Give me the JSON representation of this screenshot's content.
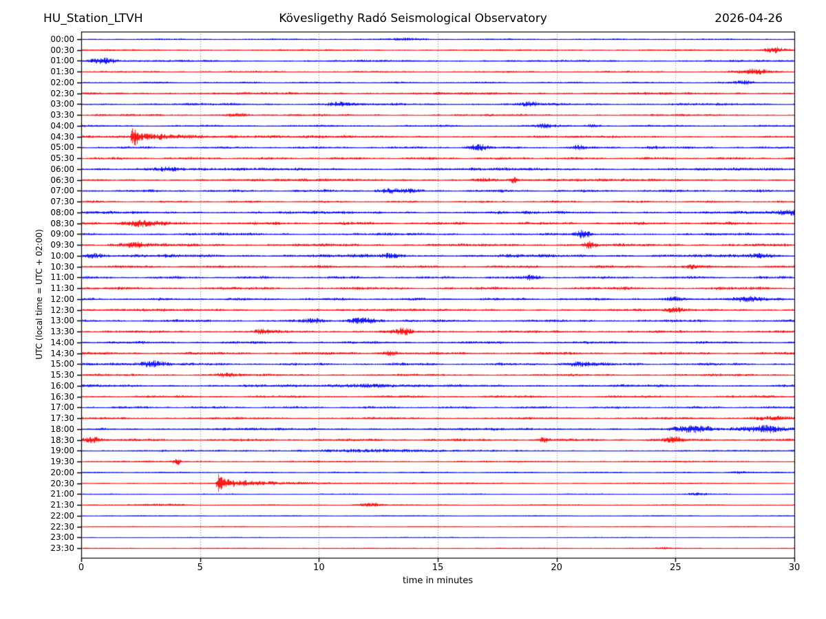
{
  "header": {
    "station": "HU_Station_LTVH",
    "observatory": "Kövesligethy Radó Seismological Observatory",
    "date": "2026-04-26"
  },
  "chart_data": {
    "type": "line",
    "subtype": "helicorder-seismogram",
    "title": "HU_Station_LTVH — Kövesligethy Radó Seismological Observatory — 2026-04-26",
    "xlabel": "time in minutes",
    "ylabel": "UTC (local time = UTC + 02:00)",
    "xlim": [
      0,
      30
    ],
    "x_ticks": [
      0,
      5,
      10,
      15,
      20,
      25,
      30
    ],
    "minutes_per_row": 30,
    "grid": "vertical-dotted-at-5-min",
    "legend": "none",
    "colors": {
      "even_rows": "#0000ff",
      "odd_rows": "#ff0000"
    },
    "rows": [
      {
        "utc": "00:00",
        "color": "blue",
        "noise": 0.9,
        "events": [
          {
            "type": "burst",
            "t": 13.8,
            "a": 1.2,
            "w": 0.8
          }
        ]
      },
      {
        "utc": "00:30",
        "color": "red",
        "noise": 1.0,
        "events": [
          {
            "type": "burst",
            "t": 29.2,
            "a": 3.4,
            "w": 0.5
          }
        ]
      },
      {
        "utc": "01:00",
        "color": "blue",
        "noise": 1.3,
        "events": [
          {
            "type": "burst",
            "t": 0.9,
            "a": 3.8,
            "w": 0.55
          }
        ]
      },
      {
        "utc": "01:30",
        "color": "red",
        "noise": 1.1,
        "events": [
          {
            "type": "burst",
            "t": 28.3,
            "a": 2.7,
            "w": 0.7
          }
        ]
      },
      {
        "utc": "02:00",
        "color": "blue",
        "noise": 1.1,
        "events": [
          {
            "type": "burst",
            "t": 27.9,
            "a": 2.4,
            "w": 0.4
          }
        ]
      },
      {
        "utc": "02:30",
        "color": "red",
        "noise": 1.5,
        "events": []
      },
      {
        "utc": "03:00",
        "color": "blue",
        "noise": 1.5,
        "events": [
          {
            "type": "burst",
            "t": 10.8,
            "a": 2.5,
            "w": 0.5
          },
          {
            "type": "burst",
            "t": 18.9,
            "a": 2.8,
            "w": 0.3
          }
        ]
      },
      {
        "utc": "03:30",
        "color": "red",
        "noise": 1.3,
        "events": [
          {
            "type": "burst",
            "t": 6.5,
            "a": 2.0,
            "w": 0.6
          }
        ]
      },
      {
        "utc": "04:00",
        "color": "blue",
        "noise": 1.3,
        "events": [
          {
            "type": "burst",
            "t": 19.5,
            "a": 2.4,
            "w": 0.4
          },
          {
            "type": "burst",
            "t": 21.5,
            "a": 1.8,
            "w": 0.3
          }
        ]
      },
      {
        "utc": "04:30",
        "color": "red",
        "noise": 1.4,
        "events": [
          {
            "type": "quake",
            "t": 2.1,
            "a": 14,
            "spike_tau": 0.22,
            "coda_a": 4.5,
            "coda_tau": 3.5
          }
        ]
      },
      {
        "utc": "05:00",
        "color": "blue",
        "noise": 1.4,
        "events": [
          {
            "type": "burst",
            "t": 16.7,
            "a": 3.8,
            "w": 0.4
          },
          {
            "type": "burst",
            "t": 20.9,
            "a": 2.3,
            "w": 0.3
          },
          {
            "type": "burst",
            "t": 24.0,
            "a": 1.8,
            "w": 0.3
          }
        ]
      },
      {
        "utc": "05:30",
        "color": "red",
        "noise": 1.6,
        "events": []
      },
      {
        "utc": "06:00",
        "color": "blue",
        "noise": 1.8,
        "events": [
          {
            "type": "burst",
            "t": 3.5,
            "a": 2.2,
            "w": 0.8
          }
        ]
      },
      {
        "utc": "06:30",
        "color": "red",
        "noise": 1.6,
        "events": [
          {
            "type": "burst",
            "t": 18.2,
            "a": 4.0,
            "w": 0.15
          },
          {
            "type": "burst",
            "t": 17.0,
            "a": 2.0,
            "w": 0.5
          }
        ]
      },
      {
        "utc": "07:00",
        "color": "blue",
        "noise": 1.6,
        "events": [
          {
            "type": "burst",
            "t": 13.2,
            "a": 2.3,
            "w": 0.8
          }
        ]
      },
      {
        "utc": "07:30",
        "color": "red",
        "noise": 1.3,
        "events": []
      },
      {
        "utc": "08:00",
        "color": "blue",
        "noise": 1.8,
        "events": [
          {
            "type": "burst",
            "t": 29.7,
            "a": 3.2,
            "w": 0.4
          }
        ]
      },
      {
        "utc": "08:30",
        "color": "red",
        "noise": 1.8,
        "events": [
          {
            "type": "burst",
            "t": 2.5,
            "a": 3.8,
            "w": 0.8
          }
        ]
      },
      {
        "utc": "09:00",
        "color": "blue",
        "noise": 1.6,
        "events": [
          {
            "type": "burst",
            "t": 21.1,
            "a": 4.0,
            "w": 0.3
          }
        ]
      },
      {
        "utc": "09:30",
        "color": "red",
        "noise": 1.8,
        "events": [
          {
            "type": "burst",
            "t": 2.2,
            "a": 2.6,
            "w": 0.7
          },
          {
            "type": "burst",
            "t": 21.3,
            "a": 3.6,
            "w": 0.3
          }
        ]
      },
      {
        "utc": "10:00",
        "color": "blue",
        "noise": 2.0,
        "events": [
          {
            "type": "burst",
            "t": 0.5,
            "a": 2.4,
            "w": 0.5
          },
          {
            "type": "burst",
            "t": 13.0,
            "a": 2.2,
            "w": 0.4
          },
          {
            "type": "burst",
            "t": 28.5,
            "a": 2.4,
            "w": 0.5
          }
        ]
      },
      {
        "utc": "10:30",
        "color": "red",
        "noise": 1.6,
        "events": [
          {
            "type": "burst",
            "t": 25.6,
            "a": 2.0,
            "w": 0.3
          }
        ]
      },
      {
        "utc": "11:00",
        "color": "blue",
        "noise": 1.6,
        "events": [
          {
            "type": "burst",
            "t": 18.9,
            "a": 2.8,
            "w": 0.3
          }
        ]
      },
      {
        "utc": "11:30",
        "color": "red",
        "noise": 1.8,
        "events": []
      },
      {
        "utc": "12:00",
        "color": "blue",
        "noise": 1.6,
        "events": [
          {
            "type": "burst",
            "t": 25.0,
            "a": 2.3,
            "w": 0.3
          },
          {
            "type": "burst",
            "t": 28.0,
            "a": 2.0,
            "w": 1.0
          }
        ]
      },
      {
        "utc": "12:30",
        "color": "red",
        "noise": 1.6,
        "events": [
          {
            "type": "burst",
            "t": 25.0,
            "a": 2.8,
            "w": 0.3
          }
        ]
      },
      {
        "utc": "13:00",
        "color": "blue",
        "noise": 1.6,
        "events": [
          {
            "type": "burst",
            "t": 9.7,
            "a": 2.3,
            "w": 0.4
          },
          {
            "type": "burst",
            "t": 11.9,
            "a": 4.0,
            "w": 0.6
          }
        ]
      },
      {
        "utc": "13:30",
        "color": "red",
        "noise": 1.6,
        "events": [
          {
            "type": "burst",
            "t": 7.7,
            "a": 2.3,
            "w": 0.4
          },
          {
            "type": "burst",
            "t": 13.5,
            "a": 3.4,
            "w": 0.4
          }
        ]
      },
      {
        "utc": "14:00",
        "color": "blue",
        "noise": 1.6,
        "events": []
      },
      {
        "utc": "14:30",
        "color": "red",
        "noise": 1.6,
        "events": [
          {
            "type": "burst",
            "t": 13.0,
            "a": 3.4,
            "w": 0.3
          }
        ]
      },
      {
        "utc": "15:00",
        "color": "blue",
        "noise": 1.6,
        "events": [
          {
            "type": "burst",
            "t": 3.0,
            "a": 3.8,
            "w": 0.7
          },
          {
            "type": "burst",
            "t": 21.0,
            "a": 2.4,
            "w": 0.8
          }
        ]
      },
      {
        "utc": "15:30",
        "color": "red",
        "noise": 1.4,
        "events": [
          {
            "type": "burst",
            "t": 6.0,
            "a": 2.0,
            "w": 0.5
          }
        ]
      },
      {
        "utc": "16:00",
        "color": "blue",
        "noise": 1.6,
        "events": [
          {
            "type": "burst",
            "t": 12.0,
            "a": 2.0,
            "w": 1.5
          }
        ]
      },
      {
        "utc": "16:30",
        "color": "red",
        "noise": 1.5,
        "events": []
      },
      {
        "utc": "17:00",
        "color": "blue",
        "noise": 1.4,
        "events": []
      },
      {
        "utc": "17:30",
        "color": "red",
        "noise": 1.4,
        "events": [
          {
            "type": "burst",
            "t": 29.0,
            "a": 2.6,
            "w": 0.8
          }
        ]
      },
      {
        "utc": "18:00",
        "color": "blue",
        "noise": 1.6,
        "events": [
          {
            "type": "burst",
            "t": 25.7,
            "a": 3.6,
            "w": 0.8
          },
          {
            "type": "burst",
            "t": 28.8,
            "a": 3.6,
            "w": 1.0
          }
        ]
      },
      {
        "utc": "18:30",
        "color": "red",
        "noise": 1.6,
        "events": [
          {
            "type": "burst",
            "t": 0.4,
            "a": 3.6,
            "w": 0.4
          },
          {
            "type": "burst",
            "t": 19.5,
            "a": 2.2,
            "w": 0.3
          },
          {
            "type": "burst",
            "t": 24.9,
            "a": 2.6,
            "w": 0.5
          }
        ]
      },
      {
        "utc": "19:00",
        "color": "blue",
        "noise": 1.1,
        "events": [
          {
            "type": "burst",
            "t": 12.0,
            "a": 1.7,
            "w": 2.5
          }
        ]
      },
      {
        "utc": "19:30",
        "color": "red",
        "noise": 1.1,
        "events": [
          {
            "type": "burst",
            "t": 4.0,
            "a": 4.5,
            "w": 0.15
          }
        ]
      },
      {
        "utc": "20:00",
        "color": "blue",
        "noise": 0.9,
        "events": [
          {
            "type": "burst",
            "t": 27.7,
            "a": 1.4,
            "w": 0.4
          }
        ]
      },
      {
        "utc": "20:30",
        "color": "red",
        "noise": 0.9,
        "events": [
          {
            "type": "quake",
            "t": 5.7,
            "a": 13,
            "spike_tau": 0.25,
            "coda_a": 4.5,
            "coda_tau": 2.8
          }
        ]
      },
      {
        "utc": "21:00",
        "color": "blue",
        "noise": 0.7,
        "events": [
          {
            "type": "burst",
            "t": 26.0,
            "a": 1.3,
            "w": 0.5
          }
        ]
      },
      {
        "utc": "21:30",
        "color": "red",
        "noise": 0.7,
        "events": [
          {
            "type": "burst",
            "t": 3.5,
            "a": 1.1,
            "w": 1.0
          },
          {
            "type": "burst",
            "t": 12.2,
            "a": 2.2,
            "w": 0.5
          }
        ]
      },
      {
        "utc": "22:00",
        "color": "blue",
        "noise": 0.6,
        "events": []
      },
      {
        "utc": "22:30",
        "color": "red",
        "noise": 0.6,
        "events": []
      },
      {
        "utc": "23:00",
        "color": "blue",
        "noise": 0.6,
        "events": []
      },
      {
        "utc": "23:30",
        "color": "red",
        "noise": 0.6,
        "events": [
          {
            "type": "burst",
            "t": 24.5,
            "a": 1.0,
            "w": 0.3
          }
        ]
      }
    ]
  }
}
